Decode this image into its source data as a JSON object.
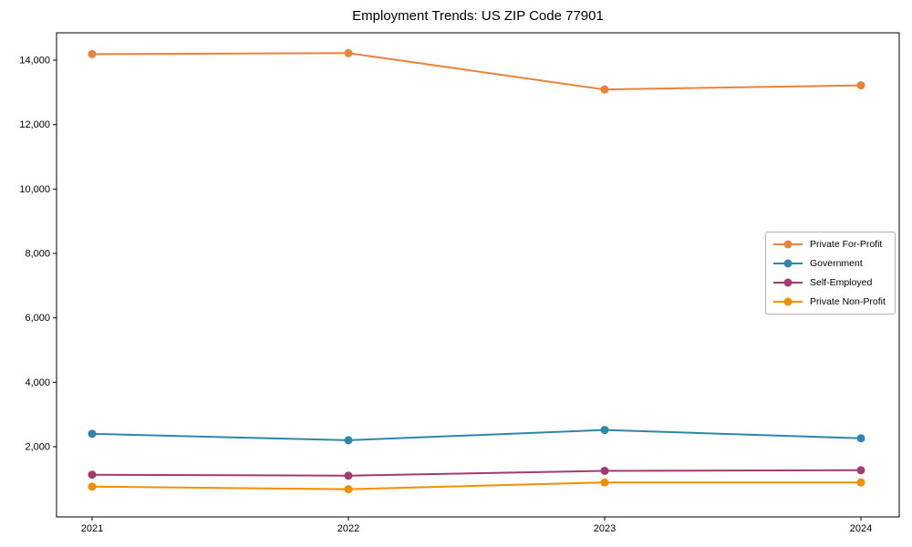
{
  "chart_data": {
    "type": "line",
    "title": "Employment Trends: US ZIP Code 77901",
    "x": [
      "2021",
      "2022",
      "2023",
      "2024"
    ],
    "series": [
      {
        "name": "Private For-Profit",
        "color": "#e8823d",
        "values": [
          14190,
          14220,
          13090,
          13220
        ]
      },
      {
        "name": "Government",
        "color": "#2e86ab",
        "values": [
          2400,
          2200,
          2520,
          2260
        ]
      },
      {
        "name": "Self-Employed",
        "color": "#a23b72",
        "values": [
          1130,
          1100,
          1250,
          1270
        ]
      },
      {
        "name": "Private Non-Profit",
        "color": "#f18f01",
        "values": [
          760,
          680,
          890,
          890
        ]
      }
    ],
    "xlabel": "",
    "ylabel": "",
    "yticks": [
      2000,
      4000,
      6000,
      8000,
      10000,
      12000,
      14000
    ],
    "ytick_labels": [
      "2,000",
      "4,000",
      "6,000",
      "8,000",
      "10,000",
      "12,000",
      "14,000"
    ],
    "ylim": [
      -180,
      14850
    ],
    "grid": false,
    "legend_position": "center right",
    "marker": "circle",
    "background_color": "#ffffff",
    "axis_color": "#000000",
    "text_color": "#000000"
  }
}
